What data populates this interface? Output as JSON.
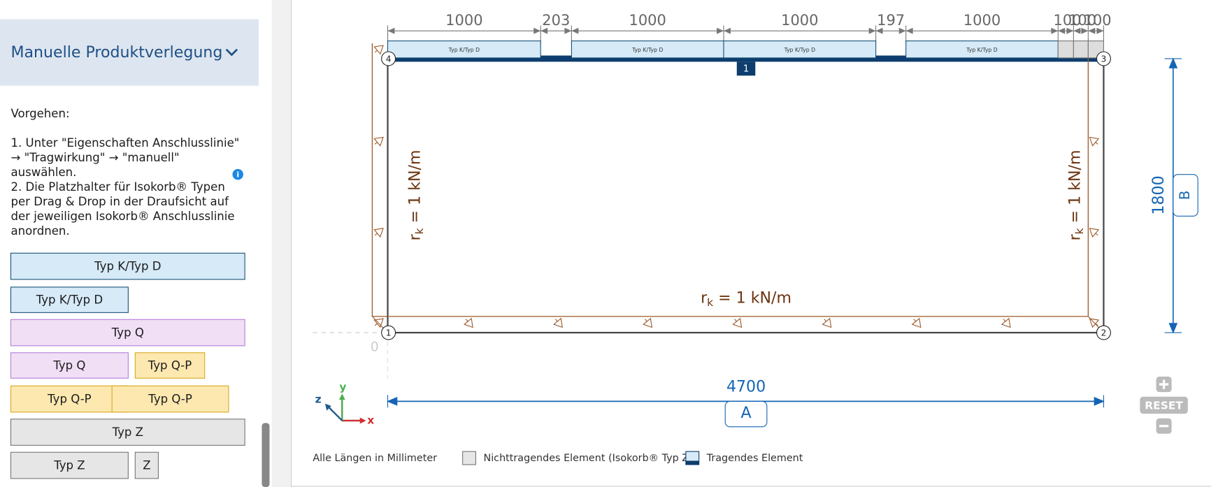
{
  "sidebar": {
    "section_title": "Manuelle Produktverlegung",
    "procedure_heading": "Vorgehen:",
    "instructions": [
      "1. Unter \"Eigenschaften Anschlusslinie\"",
      "→ \"Tragwirkung\" → \"manuell\"",
      "auswählen.",
      "2. Die Platzhalter für Isokorb® Typen",
      "per Drag & Drop in der Draufsicht auf",
      "der jeweiligen Isokorb® Anschlusslinie",
      "anordnen."
    ],
    "palette": [
      "Typ K/Typ D",
      "Typ K/Typ D",
      "Typ Q",
      "Typ Q",
      "Typ Q-P",
      "Typ Q-P",
      "Typ Q-P",
      "Typ Z",
      "Typ Z",
      "Z"
    ]
  },
  "drawing": {
    "top_dimensions": [
      "1000",
      "203",
      "1000",
      "1000",
      "197",
      "1000",
      "100",
      "100",
      "100"
    ],
    "elements": [
      "Typ K/Typ D",
      "Typ K/Typ D",
      "Typ K/Typ D",
      "Typ K/Typ D"
    ],
    "nodes": [
      "1",
      "2",
      "3",
      "4"
    ],
    "edge_label": "1",
    "origin": "0",
    "loads": [
      {
        "symbol": "r",
        "subscript": "k",
        "text": " = 1 kN/m"
      },
      {
        "symbol": "r",
        "subscript": "k",
        "text": " = 1 kN/m"
      },
      {
        "symbol": "r",
        "subscript": "k",
        "text": " = 1 kN/m"
      }
    ],
    "width_dimension": "4700",
    "width_label": "A",
    "height_dimension": "1800",
    "height_label": "B",
    "axes": [
      "x",
      "y",
      "z"
    ],
    "reset": "RESET",
    "legend": {
      "units_note": "Alle Längen in Millimeter",
      "non_load_bearing": "Nichttragendes Element (Isokorb® Typ Z)",
      "load_bearing": "Tragendes Element"
    }
  }
}
